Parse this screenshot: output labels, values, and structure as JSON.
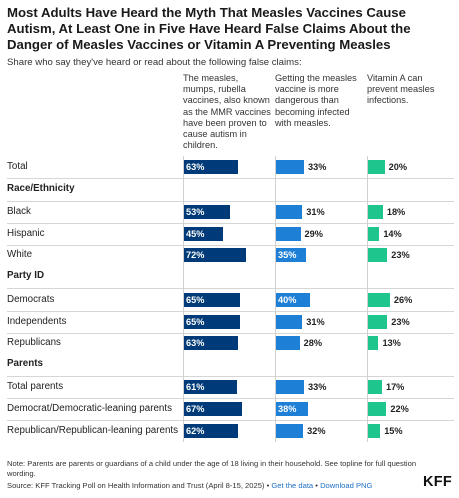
{
  "title": "Most Adults Have Heard the Myth That Measles Vaccines Cause Autism, At Least One in Five Have Heard False Claims About the Danger of Measles Vaccines or Vitamin A Preventing Measles",
  "subtitle": "Share who say they've heard or read about the following false claims:",
  "footer": {
    "note": "Note: Parents are parents or guardians of a child under the age of 18 living in their household. See topline for full question wording.",
    "source_prefix": "Source: KFF Tracking Poll on Health Information and Trust (April 8-15, 2025) •",
    "get_data": "Get the data",
    "separator": "•",
    "download": "Download PNG",
    "logo": "KFF"
  },
  "colors": {
    "claim_1": "#003a78",
    "claim_2": "#1e7fd6",
    "claim_3": "#1ec58c"
  },
  "chart_data": {
    "type": "bar",
    "unit": "%",
    "columns": [
      "The measles, mumps, rubella vaccines, also known as the MMR vaccines have been proven to cause autism in children.",
      "Getting the measles vaccine is more dangerous than becoming infected with measles.",
      "Vitamin A can prevent measles infections."
    ],
    "groups": [
      "",
      "Race/Ethnicity",
      "Party ID",
      "Parents"
    ],
    "rows": [
      {
        "group": "",
        "label": "Total",
        "values": [
          63,
          33,
          20
        ]
      },
      {
        "group": "Race/Ethnicity",
        "label": "Black",
        "values": [
          53,
          31,
          18
        ]
      },
      {
        "group": "Race/Ethnicity",
        "label": "Hispanic",
        "values": [
          45,
          29,
          14
        ]
      },
      {
        "group": "Race/Ethnicity",
        "label": "White",
        "values": [
          72,
          35,
          23
        ]
      },
      {
        "group": "Party ID",
        "label": "Democrats",
        "values": [
          65,
          40,
          26
        ]
      },
      {
        "group": "Party ID",
        "label": "Independents",
        "values": [
          65,
          31,
          23
        ]
      },
      {
        "group": "Party ID",
        "label": "Republicans",
        "values": [
          63,
          28,
          13
        ]
      },
      {
        "group": "Parents",
        "label": "Total parents",
        "values": [
          61,
          33,
          17
        ]
      },
      {
        "group": "Parents",
        "label": "Democrat/Democratic-leaning parents",
        "values": [
          67,
          38,
          22
        ]
      },
      {
        "group": "Parents",
        "label": "Republican/Republican-leaning parents",
        "values": [
          62,
          32,
          15
        ]
      }
    ],
    "value_format": "{v}%"
  }
}
